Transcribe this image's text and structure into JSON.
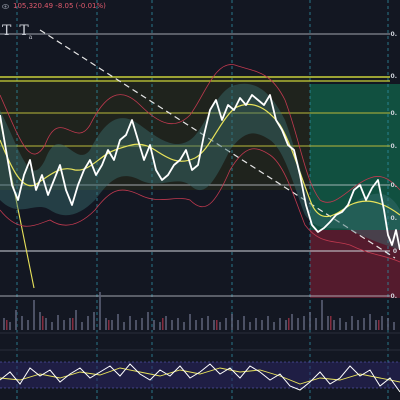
{
  "header": {
    "price_change": "105,320.49  -8.05 (-0.01%)",
    "icon": "eye-icon"
  },
  "tools": [
    {
      "name": "text-tool",
      "label": "T"
    },
    {
      "name": "text-note-tool",
      "label": "T",
      "sub": "a"
    }
  ],
  "price_labels": [
    "0.",
    "0.",
    "0.",
    "0.",
    "0.",
    "0",
    "0.",
    "0."
  ],
  "colors": {
    "background": "#131722",
    "price_line": "#ffffff",
    "ma_line": "#e8e25a",
    "band_line": "#c0394f",
    "band_fill": "#3a6f72",
    "tp_zone": "#11805a",
    "sl_zone": "#8a1f37",
    "fib_line": "#b9b93a",
    "grid_dashed": "#2f8fa3"
  }
}
